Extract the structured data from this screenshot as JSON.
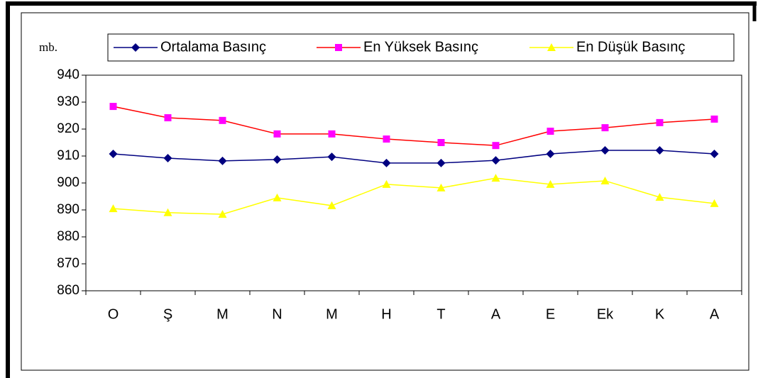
{
  "chart_data": {
    "type": "line",
    "y_unit": "mb.",
    "categories": [
      "O",
      "Ş",
      "M",
      "N",
      "M",
      "H",
      "T",
      "A",
      "E",
      "Ek",
      "K",
      "A"
    ],
    "series": [
      {
        "name": "Ortalama Basınç",
        "color": "#000080",
        "marker_color": "#000080",
        "marker": "diamond",
        "values": [
          910.8,
          909.2,
          908.2,
          908.7,
          909.7,
          907.4,
          907.4,
          908.4,
          910.8,
          912.1,
          912.1,
          910.8
        ]
      },
      {
        "name": "En Yüksek Basınç",
        "color": "#ff0000",
        "marker_color": "#ff00ff",
        "marker": "square",
        "values": [
          928.4,
          924.2,
          923.2,
          918.2,
          918.2,
          916.3,
          915.0,
          913.9,
          919.2,
          920.5,
          922.4,
          923.7
        ]
      },
      {
        "name": "En Düşük Basınç",
        "color": "#ffff00",
        "marker_color": "#ffff00",
        "marker": "triangle",
        "values": [
          890.5,
          889.0,
          888.4,
          894.5,
          891.6,
          899.5,
          898.2,
          901.8,
          899.5,
          900.8,
          894.7,
          892.4
        ]
      }
    ],
    "ylim": [
      860,
      940
    ],
    "yticks": [
      860,
      870,
      880,
      890,
      900,
      910,
      920,
      930,
      940
    ],
    "legend": "top"
  }
}
